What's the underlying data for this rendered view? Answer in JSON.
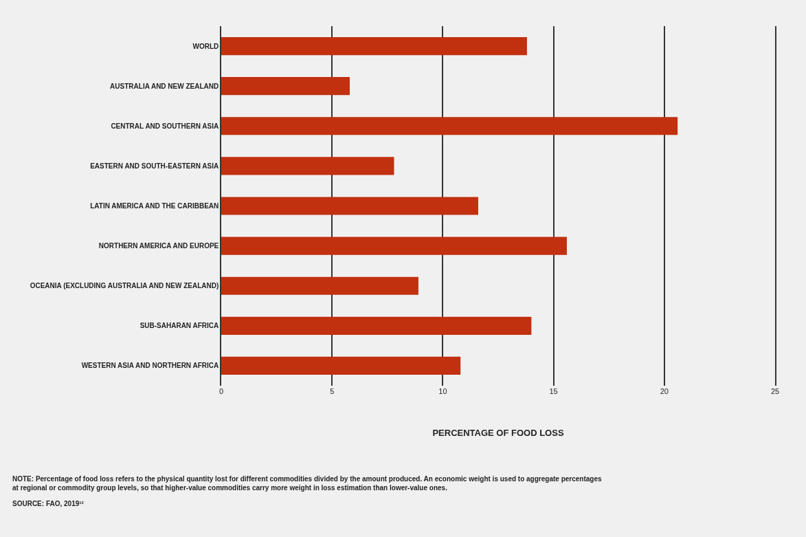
{
  "chart_data": {
    "type": "bar",
    "orientation": "horizontal",
    "xlabel": "PERCENTAGE OF FOOD LOSS",
    "categories": [
      "WORLD",
      "AUSTRALIA AND NEW ZEALAND",
      "CENTRAL AND SOUTHERN ASIA",
      "EASTERN AND SOUTH-EASTERN ASIA",
      "LATIN AMERICA AND THE CARIBBEAN",
      "NORTHERN AMERICA AND EUROPE",
      "OCEANIA (EXCLUDING AUSTRALIA AND NEW ZEALAND)",
      "SUB-SAHARAN AFRICA",
      "WESTERN ASIA AND NORTHERN AFRICA"
    ],
    "values": [
      13.8,
      5.8,
      20.6,
      7.8,
      11.6,
      15.6,
      8.9,
      14.0,
      10.8
    ],
    "color": "#c1300f",
    "xlim": [
      0,
      25
    ],
    "xticks": [
      0,
      5,
      10,
      15,
      20,
      25
    ],
    "grid": "x",
    "legend": false,
    "annotations": [
      "NOTE: Percentage of food loss refers to the physical quantity lost for different commodities divided by the amount produced. An economic weight is used to aggregate percentages at regional or commodity group levels, so that higher-value commodities carry more weight in loss estimation than lower-value ones.",
      "SOURCE: FAO, 2019¹²"
    ]
  }
}
